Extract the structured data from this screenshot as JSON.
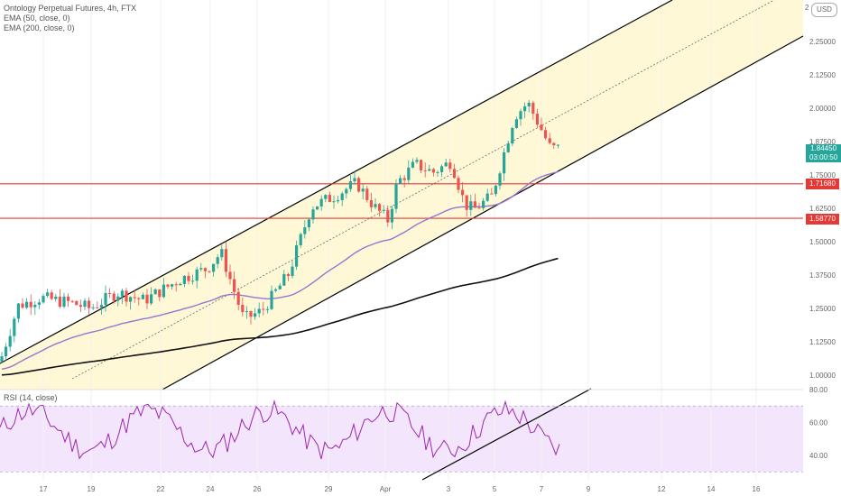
{
  "header": {
    "title": "Ontology Perpetual Futures, 4h, FTX",
    "ema50": "EMA (50, close, 0)",
    "ema200": "EMA (200, close, 0)",
    "currency": "USD",
    "scale_partial": "2"
  },
  "rsi_header": "RSI (14, close)",
  "current_price": {
    "value": "1.84450",
    "countdown": "03:00:50"
  },
  "levels": [
    {
      "label": "1.71680",
      "value": 1.7168
    },
    {
      "label": "1.58770",
      "value": 1.5877
    }
  ],
  "colors": {
    "up": "#26a69a",
    "down": "#ef5350",
    "channel_fill": "#fff8d6",
    "rsi_fill": "#f3e5fb",
    "ema50": "#9575cd",
    "ema200": "#111111",
    "level_line": "#e53935"
  },
  "chart_data": {
    "type": "candlestick",
    "y_ticks": [
      "2.25000",
      "2.12500",
      "2.00000",
      "1.87500",
      "1.75000",
      "1.62500",
      "1.50000",
      "1.37500",
      "1.25000",
      "1.12500",
      "1.00000"
    ],
    "x_ticks": [
      "17",
      "19",
      "22",
      "24",
      "26",
      "29",
      "Apr",
      "3",
      "5",
      "7",
      "9",
      "12",
      "14",
      "16"
    ],
    "rsi_ticks": [
      "80.00",
      "60.00",
      "40.00"
    ],
    "rsi_band": [
      30,
      70
    ]
  }
}
